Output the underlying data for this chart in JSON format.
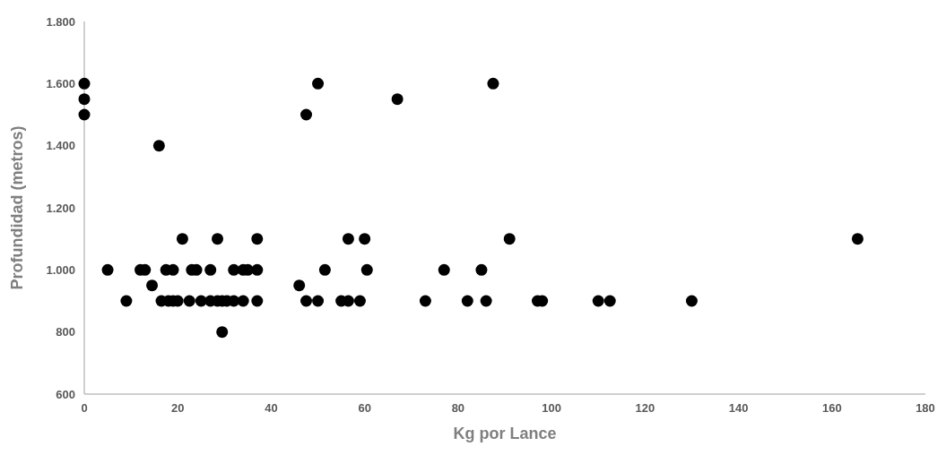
{
  "chart_data": {
    "type": "scatter",
    "xlabel": "Kg por Lance",
    "ylabel": "Profundidad (metros)",
    "xlim": [
      0,
      180
    ],
    "ylim": [
      600,
      1800
    ],
    "xticks": [
      0,
      20,
      40,
      60,
      80,
      100,
      120,
      140,
      160,
      180
    ],
    "yticks": [
      {
        "value": 600,
        "label": "600"
      },
      {
        "value": 800,
        "label": "800"
      },
      {
        "value": 1000,
        "label": "1.000"
      },
      {
        "value": 1200,
        "label": "1.200"
      },
      {
        "value": 1400,
        "label": "1.400"
      },
      {
        "value": 1600,
        "label": "1.600"
      },
      {
        "value": 1800,
        "label": "1.800"
      }
    ],
    "grid": false,
    "marker": "circle",
    "series": [
      {
        "color": "#000000",
        "x": [
          0,
          50,
          87.5,
          0,
          67,
          0,
          47.5,
          16,
          21,
          28.5,
          37,
          56.5,
          60,
          91,
          165.5,
          5,
          12,
          13,
          17.5,
          19,
          23,
          24,
          27,
          32,
          34,
          35,
          37,
          51.5,
          60.5,
          77,
          85,
          14.5,
          46,
          9,
          16.5,
          18,
          19,
          20,
          22.5,
          25,
          27,
          28.5,
          29.5,
          30.5,
          32,
          34,
          37,
          47.5,
          50,
          55,
          56.5,
          59,
          73,
          82,
          86,
          97,
          98,
          110,
          112.5,
          130,
          29.5
        ],
        "values": [
          1600,
          1600,
          1600,
          1550,
          1550,
          1500,
          1500,
          1400,
          1100,
          1100,
          1100,
          1100,
          1100,
          1100,
          1100,
          1000,
          1000,
          1000,
          1000,
          1000,
          1000,
          1000,
          1000,
          1000,
          1000,
          1000,
          1000,
          1000,
          1000,
          1000,
          1000,
          950,
          950,
          900,
          900,
          900,
          900,
          900,
          900,
          900,
          900,
          900,
          900,
          900,
          900,
          900,
          900,
          900,
          900,
          900,
          900,
          900,
          900,
          900,
          900,
          900,
          900,
          900,
          900,
          900,
          800
        ]
      }
    ]
  }
}
